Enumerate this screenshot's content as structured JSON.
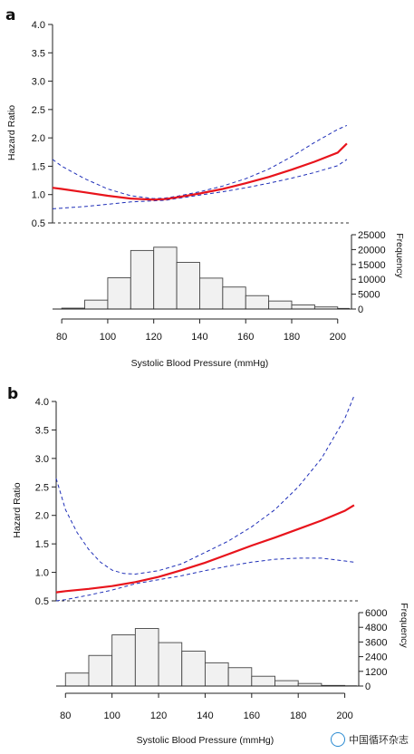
{
  "colors": {
    "hr_line": "#e8141c",
    "ci_line": "#1f2fb8",
    "bar_fill": "#f1f1f1",
    "bar_edge": "#444444"
  },
  "watermark": "中国循环杂志",
  "chart_data": [
    {
      "panel": "a",
      "type": "line+histogram",
      "ylabel": "Hazard Ratio",
      "ylabel2": "Frequency",
      "xlabel": "Systolic Blood Pressure (mmHg)",
      "x_ticks": [
        "80",
        "100",
        "120",
        "140",
        "160",
        "180",
        "200"
      ],
      "y_ticks": [
        "0.5",
        "1.0",
        "1.5",
        "2.0",
        "2.5",
        "3.0",
        "3.5",
        "4.0"
      ],
      "freq_ticks": [
        "0",
        "5000",
        "10000",
        "15000",
        "20000",
        "25000"
      ],
      "xlim": [
        76,
        206
      ],
      "ylim": [
        0.5,
        4.0
      ],
      "freq_lim": [
        0,
        25000
      ],
      "reference_line": 0.5,
      "series": [
        {
          "name": "",
          "role": "hr",
          "x": [
            76,
            80,
            90,
            100,
            110,
            120,
            125,
            130,
            140,
            150,
            160,
            170,
            180,
            190,
            200,
            204
          ],
          "y": [
            1.12,
            1.1,
            1.04,
            0.98,
            0.93,
            0.91,
            0.92,
            0.95,
            1.02,
            1.1,
            1.2,
            1.31,
            1.44,
            1.58,
            1.74,
            1.9
          ]
        },
        {
          "name": "",
          "role": "ci_upper",
          "x": [
            76,
            80,
            90,
            100,
            110,
            120,
            125,
            130,
            140,
            150,
            160,
            170,
            180,
            190,
            200,
            204
          ],
          "y": [
            1.62,
            1.5,
            1.28,
            1.1,
            0.98,
            0.93,
            0.94,
            0.97,
            1.05,
            1.15,
            1.28,
            1.45,
            1.67,
            1.92,
            2.15,
            2.22
          ]
        },
        {
          "name": "",
          "role": "ci_lower",
          "x": [
            76,
            80,
            90,
            100,
            110,
            120,
            125,
            130,
            140,
            150,
            160,
            170,
            180,
            190,
            200,
            204
          ],
          "y": [
            0.75,
            0.76,
            0.79,
            0.83,
            0.87,
            0.89,
            0.9,
            0.93,
            0.99,
            1.05,
            1.12,
            1.2,
            1.29,
            1.39,
            1.51,
            1.62
          ]
        }
      ],
      "histogram": {
        "bin_edges": [
          80,
          90,
          100,
          110,
          120,
          130,
          140,
          150,
          160,
          170,
          180,
          190,
          200,
          205
        ],
        "counts": [
          300,
          3000,
          10500,
          19700,
          20800,
          15700,
          10400,
          7400,
          4500,
          2700,
          1400,
          700,
          200
        ]
      }
    },
    {
      "panel": "b",
      "type": "line+histogram",
      "ylabel": "Hazard Ratio",
      "ylabel2": "Frequency",
      "xlabel": "Systolic Blood Pressure (mmHg)",
      "x_ticks": [
        "80",
        "100",
        "120",
        "140",
        "160",
        "180",
        "200"
      ],
      "y_ticks": [
        "0.5",
        "1.0",
        "1.5",
        "2.0",
        "2.5",
        "3.0",
        "3.5",
        "4.0"
      ],
      "freq_ticks": [
        "0",
        "1200",
        "2400",
        "3600",
        "4800",
        "6000"
      ],
      "xlim": [
        76,
        206
      ],
      "ylim": [
        0.5,
        4.0
      ],
      "freq_lim": [
        0,
        6000
      ],
      "reference_line": 0.5,
      "series": [
        {
          "name": "",
          "role": "hr",
          "x": [
            76,
            80,
            90,
            100,
            110,
            120,
            130,
            140,
            150,
            160,
            170,
            180,
            190,
            200,
            204
          ],
          "y": [
            0.65,
            0.67,
            0.71,
            0.76,
            0.83,
            0.92,
            1.04,
            1.17,
            1.32,
            1.47,
            1.61,
            1.76,
            1.91,
            2.08,
            2.18
          ]
        },
        {
          "name": "",
          "role": "ci_upper",
          "x": [
            76,
            80,
            85,
            90,
            95,
            100,
            105,
            110,
            120,
            130,
            140,
            150,
            160,
            170,
            180,
            190,
            200,
            204
          ],
          "y": [
            2.65,
            2.1,
            1.7,
            1.4,
            1.18,
            1.04,
            0.98,
            0.97,
            1.03,
            1.15,
            1.35,
            1.55,
            1.8,
            2.1,
            2.5,
            3.0,
            3.7,
            4.1
          ]
        },
        {
          "name": "",
          "role": "ci_lower",
          "x": [
            76,
            80,
            90,
            100,
            110,
            120,
            130,
            140,
            150,
            160,
            170,
            180,
            190,
            200,
            204
          ],
          "y": [
            0.5,
            0.52,
            0.6,
            0.69,
            0.8,
            0.87,
            0.94,
            1.03,
            1.11,
            1.18,
            1.23,
            1.25,
            1.25,
            1.2,
            1.18
          ]
        }
      ],
      "histogram": {
        "bin_edges": [
          80,
          90,
          100,
          110,
          120,
          130,
          140,
          150,
          160,
          170,
          180,
          190,
          200,
          205
        ],
        "counts": [
          1060,
          2500,
          4180,
          4700,
          3550,
          2850,
          1900,
          1500,
          800,
          440,
          210,
          50,
          20
        ]
      }
    }
  ]
}
